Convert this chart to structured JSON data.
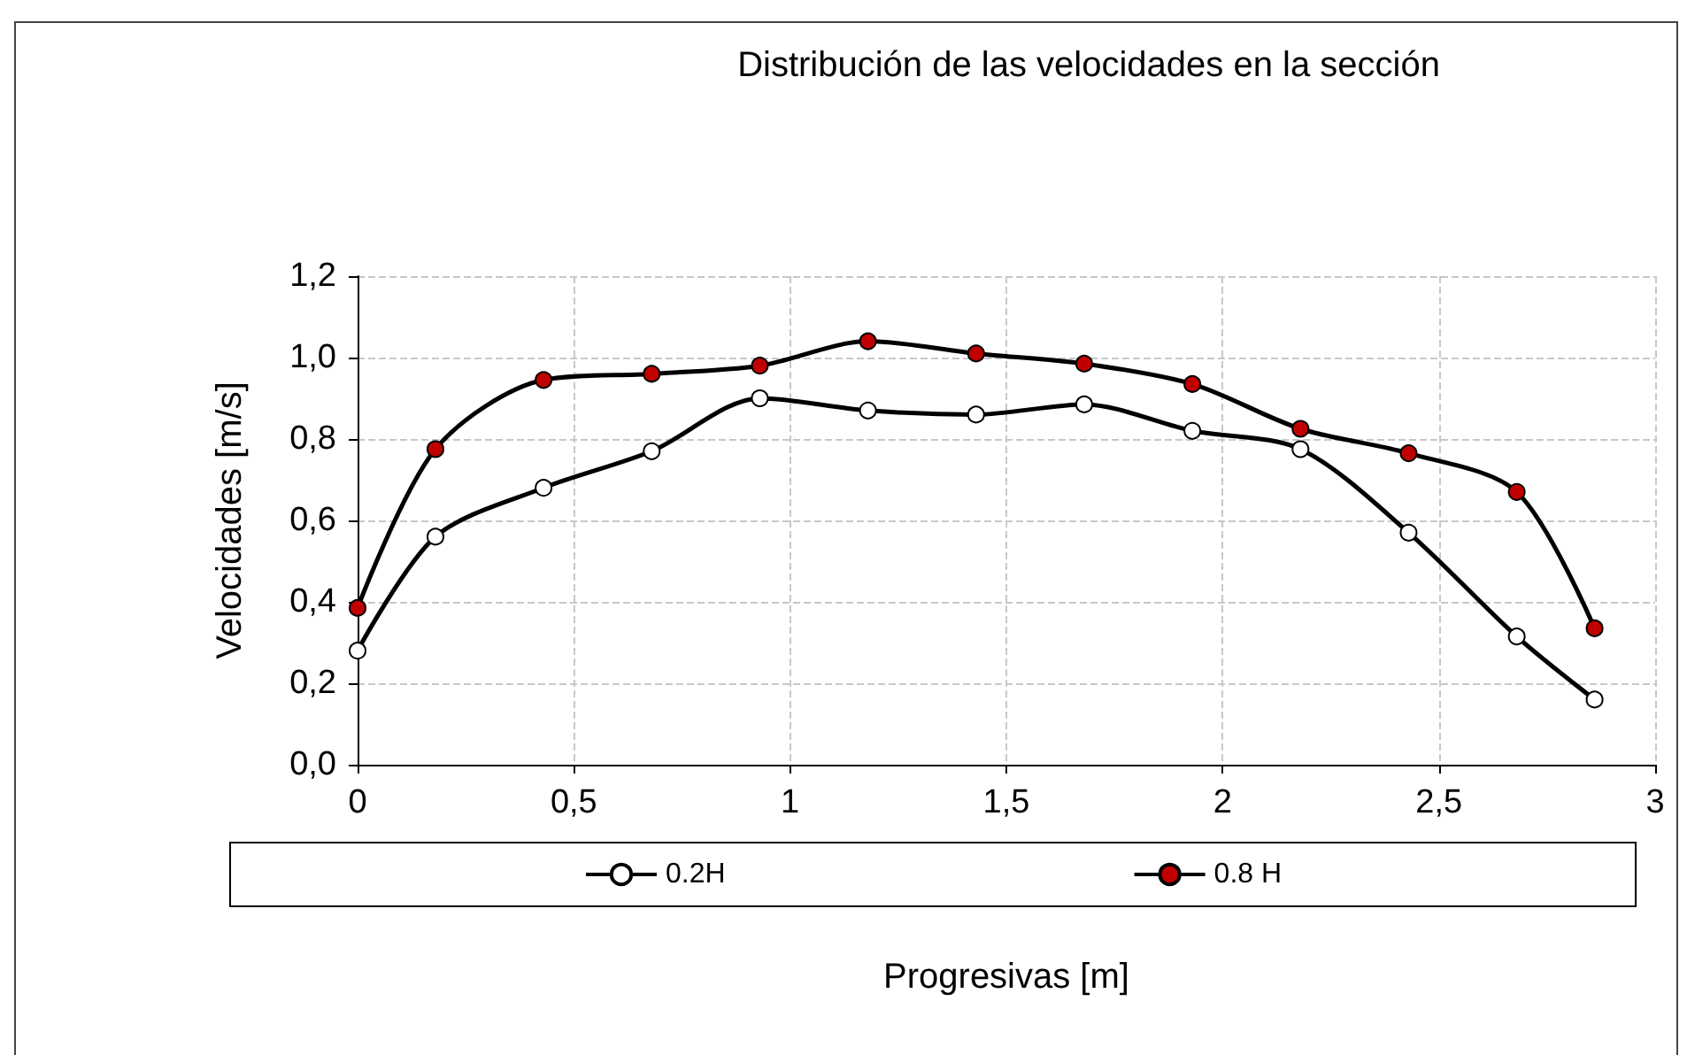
{
  "chart_data": {
    "type": "line",
    "title": "Distribución de las velocidades en la sección",
    "xlabel": "Progresivas [m]",
    "ylabel": "Velocidades [m/s]",
    "x": [
      0,
      0.18,
      0.43,
      0.68,
      0.93,
      1.18,
      1.43,
      1.68,
      1.93,
      2.18,
      2.43,
      2.68,
      2.86
    ],
    "series": [
      {
        "name": "0.2H",
        "color": "#ffffff",
        "values": [
          0.28,
          0.56,
          0.68,
          0.77,
          0.9,
          0.87,
          0.86,
          0.885,
          0.82,
          0.775,
          0.57,
          0.315,
          0.16
        ]
      },
      {
        "name": "0.8 H",
        "color": "#c00000",
        "values": [
          0.385,
          0.775,
          0.945,
          0.96,
          0.98,
          1.04,
          1.01,
          0.985,
          0.935,
          0.825,
          0.765,
          0.67,
          0.335
        ]
      }
    ],
    "xlim": [
      0,
      3
    ],
    "xticks": [
      {
        "value": 0,
        "label": "0"
      },
      {
        "value": 0.5,
        "label": "0,5"
      },
      {
        "value": 1,
        "label": "1"
      },
      {
        "value": 1.5,
        "label": "1,5"
      },
      {
        "value": 2,
        "label": "2"
      },
      {
        "value": 2.5,
        "label": "2,5"
      },
      {
        "value": 3,
        "label": "3"
      }
    ],
    "ylim": [
      0,
      1.2
    ],
    "yticks": [
      {
        "value": 0,
        "label": "0,0"
      },
      {
        "value": 0.2,
        "label": "0,2"
      },
      {
        "value": 0.4,
        "label": "0,4"
      },
      {
        "value": 0.6,
        "label": "0,6"
      },
      {
        "value": 0.8,
        "label": "0,8"
      },
      {
        "value": 1,
        "label": "1,0"
      },
      {
        "value": 1.2,
        "label": "1,2"
      }
    ],
    "grid": true,
    "legend": "bottom",
    "marker": "circle",
    "line_style": "solid"
  }
}
